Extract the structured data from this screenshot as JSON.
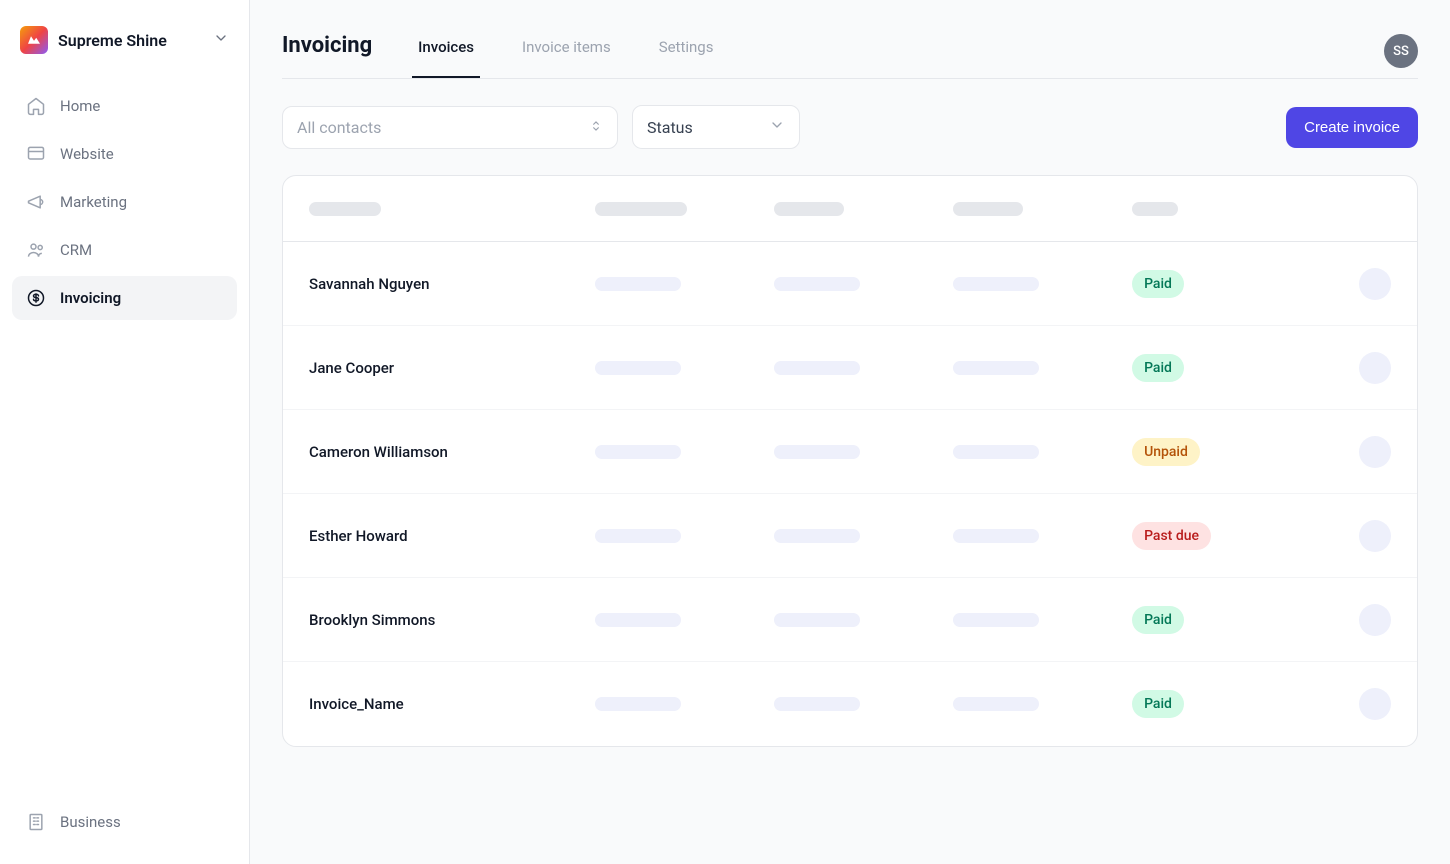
{
  "workspace": {
    "name": "Supreme Shine"
  },
  "avatar": {
    "initials": "SS"
  },
  "sidebar": {
    "items": [
      {
        "key": "home",
        "label": "Home",
        "active": false
      },
      {
        "key": "website",
        "label": "Website",
        "active": false
      },
      {
        "key": "marketing",
        "label": "Marketing",
        "active": false
      },
      {
        "key": "crm",
        "label": "CRM",
        "active": false
      },
      {
        "key": "invoicing",
        "label": "Invoicing",
        "active": true
      }
    ],
    "footer": {
      "label": "Business"
    }
  },
  "page": {
    "title": "Invoicing"
  },
  "tabs": [
    {
      "key": "invoices",
      "label": "Invoices",
      "active": true
    },
    {
      "key": "items",
      "label": "Invoice items",
      "active": false
    },
    {
      "key": "settings",
      "label": "Settings",
      "active": false
    }
  ],
  "filters": {
    "contacts_placeholder": "All contacts",
    "status_label": "Status"
  },
  "actions": {
    "create_label": "Create invoice"
  },
  "status_styles": {
    "Paid": {
      "bg": "#d1fae5",
      "fg": "#047857"
    },
    "Unpaid": {
      "bg": "#fef3c7",
      "fg": "#b45309"
    },
    "Past due": {
      "bg": "#fee2e2",
      "fg": "#b91c1c"
    }
  },
  "table": {
    "rows": [
      {
        "name": "Savannah Nguyen",
        "status": "Paid"
      },
      {
        "name": "Jane Cooper",
        "status": "Paid"
      },
      {
        "name": "Cameron Williamson",
        "status": "Unpaid"
      },
      {
        "name": "Esther Howard",
        "status": "Past due"
      },
      {
        "name": "Brooklyn Simmons",
        "status": "Paid"
      },
      {
        "name": "Invoice_Name",
        "status": "Paid"
      }
    ]
  },
  "colors": {
    "primary": "#4f46e5",
    "background": "#f9fafb",
    "border": "#e5e7eb",
    "text": "#111827",
    "muted": "#9ca3af",
    "skeleton_head": "#e5e7eb",
    "skeleton_cell": "#eef0fb"
  }
}
